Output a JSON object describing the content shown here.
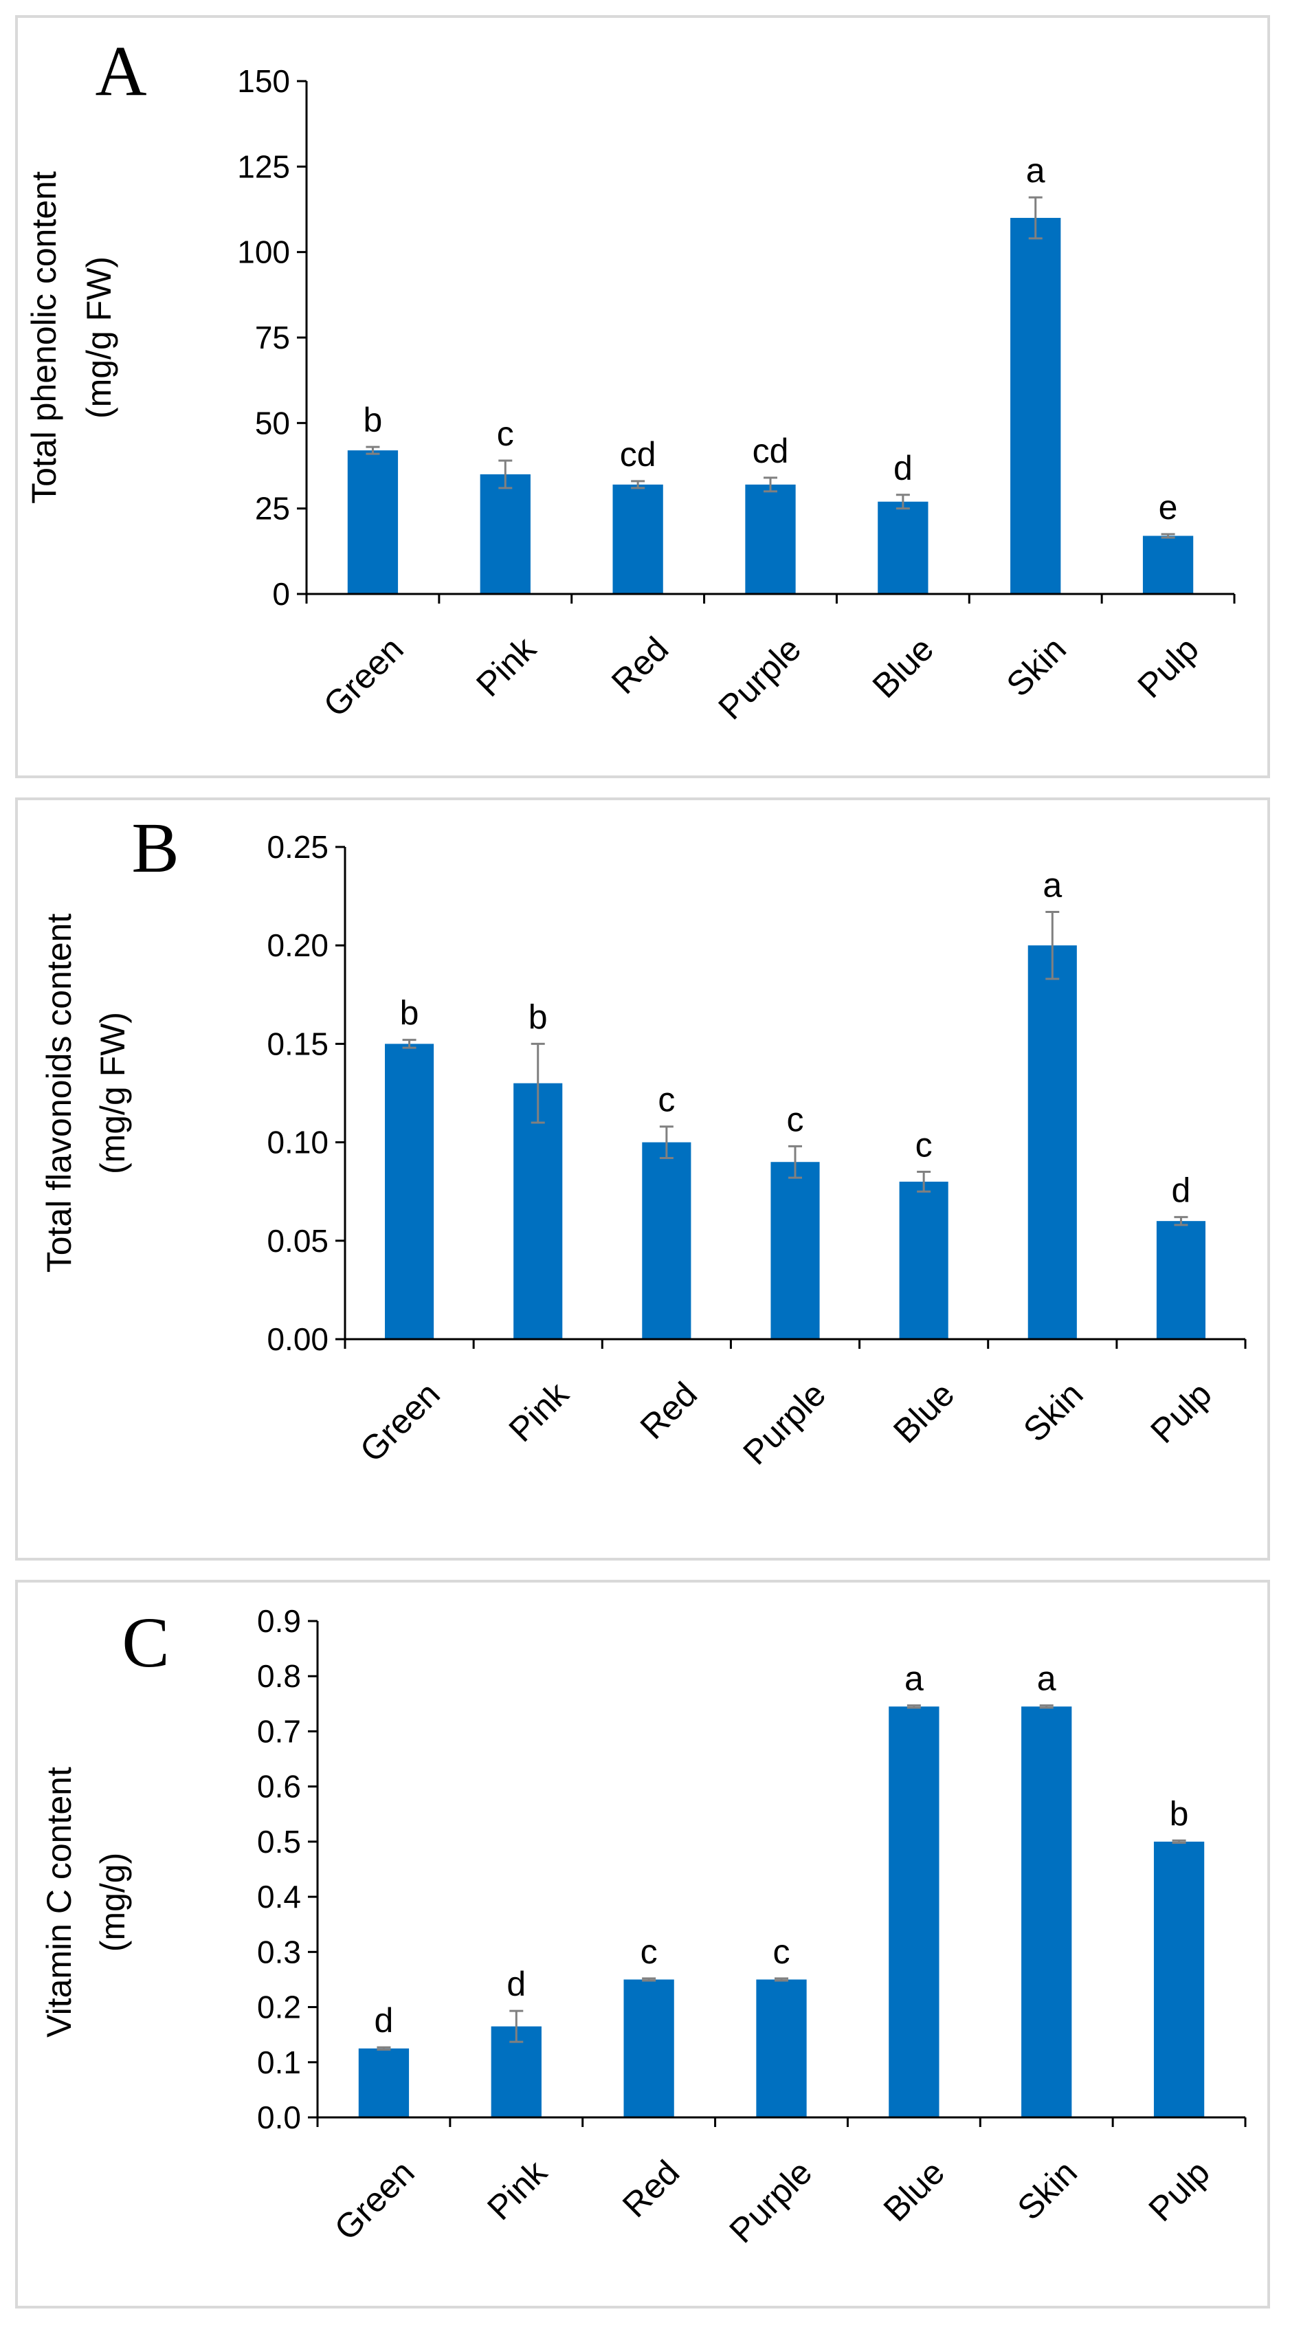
{
  "colors": {
    "bar": "#0070c0",
    "error_bar": "#808080",
    "axis": "#000000",
    "text": "#000000"
  },
  "chart_data": [
    {
      "type": "bar",
      "panel_label": "A",
      "ylabel_lines": [
        "Total phenolic content",
        "(mg/g FW)"
      ],
      "ylim": [
        0,
        150
      ],
      "yticks": [
        "0",
        "25",
        "50",
        "75",
        "100",
        "125",
        "150"
      ],
      "categories": [
        "Green",
        "Pink",
        "Red",
        "Purple",
        "Blue",
        "Skin",
        "Pulp"
      ],
      "values": [
        42,
        35,
        32,
        32,
        27,
        110,
        17
      ],
      "errors": [
        1,
        4,
        1,
        2,
        2,
        6,
        0.5
      ],
      "significance": [
        "b",
        "c",
        "cd",
        "cd",
        "d",
        "a",
        "e"
      ]
    },
    {
      "type": "bar",
      "panel_label": "B",
      "ylabel_lines": [
        "Total flavonoids content",
        "(mg/g FW)"
      ],
      "ylim": [
        0,
        0.25
      ],
      "yticks": [
        "0.00",
        "0.05",
        "0.10",
        "0.15",
        "0.20",
        "0.25"
      ],
      "categories": [
        "Green",
        "Pink",
        "Red",
        "Purple",
        "Blue",
        "Skin",
        "Pulp"
      ],
      "values": [
        0.15,
        0.13,
        0.1,
        0.09,
        0.08,
        0.2,
        0.06
      ],
      "errors": [
        0.002,
        0.02,
        0.008,
        0.008,
        0.005,
        0.017,
        0.002
      ],
      "significance": [
        "b",
        "b",
        "c",
        "c",
        "c",
        "a",
        "d"
      ]
    },
    {
      "type": "bar",
      "panel_label": "C",
      "ylabel_lines": [
        "Vitamin C content",
        "(mg/g)"
      ],
      "ylim": [
        0,
        0.9
      ],
      "yticks": [
        "0.0",
        "0.1",
        "0.2",
        "0.3",
        "0.4",
        "0.5",
        "0.6",
        "0.7",
        "0.8",
        "0.9"
      ],
      "categories": [
        "Green",
        "Pink",
        "Red",
        "Purple",
        "Blue",
        "Skin",
        "Pulp"
      ],
      "values": [
        0.125,
        0.165,
        0.25,
        0.25,
        0.745,
        0.745,
        0.5
      ],
      "errors": [
        0.002,
        0.028,
        0.002,
        0.002,
        0.002,
        0.002,
        0.002
      ],
      "significance": [
        "d",
        "d",
        "c",
        "c",
        "a",
        "a",
        "b"
      ]
    }
  ]
}
